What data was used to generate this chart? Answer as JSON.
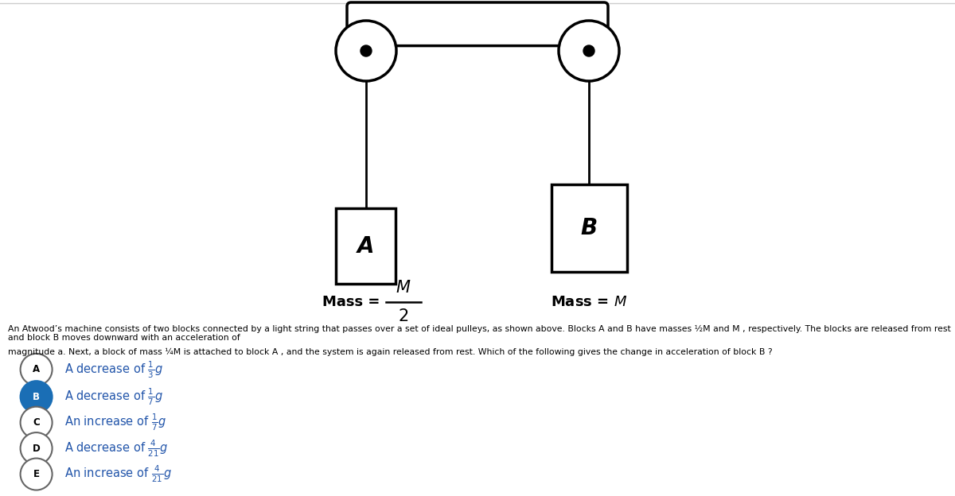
{
  "bg_color": "#ffffff",
  "selected_color": "#1a6eb5",
  "unselected_color": "#ffffff",
  "circle_edge_color": "#666666",
  "selected_label_color": "#ffffff",
  "unselected_label_color": "#000000",
  "choice_text_color": "#2255aa",
  "choices": [
    {
      "label": "A",
      "selected": false,
      "text": "A decrease of $\\frac{1}{3}g$"
    },
    {
      "label": "B",
      "selected": true,
      "text": "A decrease of $\\frac{1}{7}g$"
    },
    {
      "label": "C",
      "selected": false,
      "text": "An increase of $\\frac{1}{7}g$"
    },
    {
      "label": "D",
      "selected": false,
      "text": "A decrease of $\\frac{4}{21}g$"
    },
    {
      "label": "E",
      "selected": false,
      "text": "An increase of $\\frac{4}{21}g$"
    }
  ],
  "q_line1": "An Atwood’s machine consists of two blocks connected by a light string that passes over a set of ideal pulleys, as shown above. Blocks A and B have masses ½M and M , respectively. The blocks are released from rest and block B moves downward with an acceleration of",
  "q_line2": "magnitude a. Next, a block of mass ¼M is attached to block A , and the system is again released from rest. Which of the following gives the change in acceleration of block B ?"
}
